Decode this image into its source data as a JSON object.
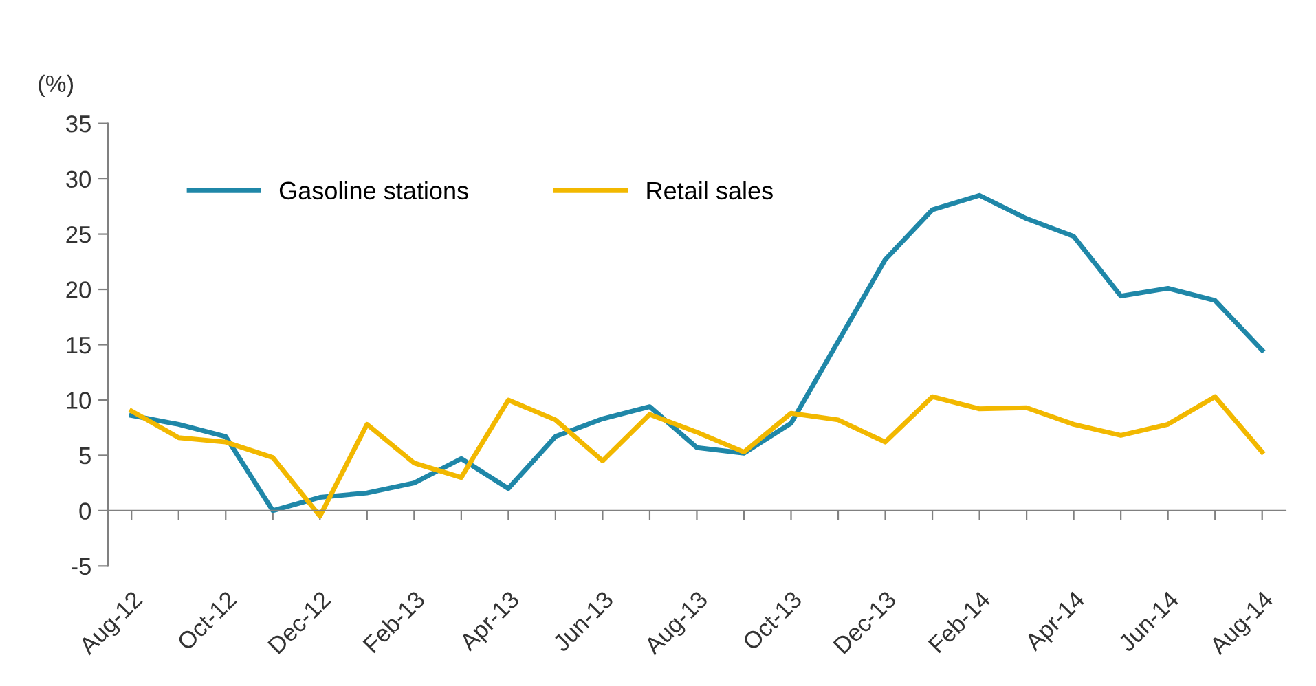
{
  "chart_data": {
    "type": "line",
    "ylabel": "(%)",
    "categories": [
      "Aug-12",
      null,
      "Oct-12",
      null,
      "Dec-12",
      null,
      "Feb-13",
      null,
      "Apr-13",
      null,
      "Jun-13",
      null,
      "Aug-13",
      null,
      "Oct-13",
      null,
      "Dec-13",
      null,
      "Feb-14",
      null,
      "Apr-14",
      null,
      "Jun-14",
      null,
      "Aug-14"
    ],
    "series": [
      {
        "name": "Gasoline stations",
        "color": "#1f87a8",
        "values": [
          8.6,
          7.8,
          6.7,
          0,
          1.2,
          1.6,
          2.5,
          4.7,
          2.0,
          6.7,
          8.3,
          9.4,
          5.7,
          5.2,
          7.9,
          15.3,
          22.7,
          27.2,
          28.5,
          26.4,
          24.8,
          19.4,
          20.1,
          19.0,
          14.5
        ]
      },
      {
        "name": "Retail sales",
        "color": "#f2b800",
        "values": [
          9.0,
          6.6,
          6.2,
          4.8,
          -0.5,
          7.8,
          4.3,
          3.0,
          10.0,
          8.2,
          4.5,
          8.7,
          7.1,
          5.3,
          8.8,
          8.2,
          6.2,
          10.3,
          9.2,
          9.3,
          7.8,
          6.8,
          7.8,
          10.3,
          5.3
        ]
      }
    ],
    "ylim": [
      -5,
      35
    ],
    "yticks": [
      -5,
      0,
      5,
      10,
      15,
      20,
      25,
      30,
      35
    ],
    "legend": "top left",
    "marker": "none",
    "line_style": "solid"
  }
}
